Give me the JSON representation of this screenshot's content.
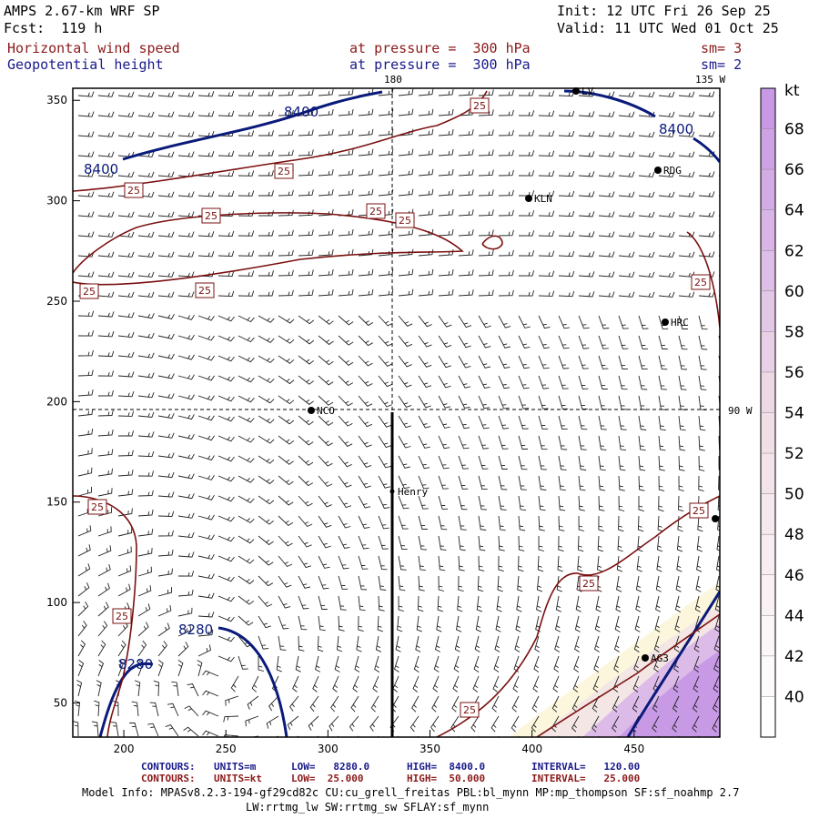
{
  "header": {
    "model": "AMPS 2.67-km WRF SP",
    "init": "Init: 12 UTC Fri 26 Sep 25",
    "forecast": "Fcst:  119 h",
    "valid": "Valid: 11 UTC Wed 01 Oct 25",
    "field1": {
      "name": "Horizontal wind speed",
      "level": "at pressure =  300 hPa",
      "smooth": "sm= 3"
    },
    "field2": {
      "name": "Geopotential height",
      "level": "at pressure =  300 hPa",
      "smooth": "sm= 2"
    }
  },
  "grid_labels": {
    "lon180": "180",
    "lon135w": "135 W",
    "lon90w": "90 W"
  },
  "axes": {
    "x_ticks": [
      "200",
      "250",
      "300",
      "350",
      "400",
      "450"
    ],
    "y_ticks": [
      "50",
      "100",
      "150",
      "200",
      "250",
      "300",
      "350"
    ]
  },
  "colorbar": {
    "unit": "kt",
    "labels": [
      "68",
      "66",
      "64",
      "62",
      "60",
      "58",
      "56",
      "54",
      "52",
      "50",
      "48",
      "46",
      "44",
      "42",
      "40"
    ],
    "colors": {
      "low": "#fbf6dc",
      "mid": "#f0dde6",
      "high": "#c89ae6"
    }
  },
  "stations": [
    {
      "id": "LV",
      "label": "LV"
    },
    {
      "id": "RDG",
      "label": "RDG"
    },
    {
      "id": "KLN",
      "label": "KLN"
    },
    {
      "id": "HRC",
      "label": "HRC"
    },
    {
      "id": "NCO",
      "label": "NCO"
    },
    {
      "id": "Henry",
      "label": "Henry"
    },
    {
      "id": "AG",
      "label": "AG3"
    }
  ],
  "contour_labels": {
    "height_8400": "8400",
    "height_8280": "8280",
    "speed_25": "25"
  },
  "footer": {
    "row1": {
      "title": "CONTOURS:",
      "units": "UNITS=m",
      "low": "LOW=   8280.0",
      "high": "HIGH=  8400.0",
      "interval": "INTERVAL=   120.00"
    },
    "row2": {
      "title": "CONTOURS:",
      "units": "UNITS=kt",
      "low": "LOW=  25.000",
      "high": "HIGH=  50.000",
      "interval": "INTERVAL=   25.000"
    },
    "model_info1": "Model Info: MPASv8.2.3-194-gf29cd82c CU:cu_grell_freitas PBL:bl_mynn MP:mp_thompson SF:sf_noahmp 2.7",
    "model_info2": "LW:rrtmg_lw SW:rrtmg_sw SFLAY:sf_mynn"
  },
  "colors": {
    "height_contour": "#0a1a7a",
    "speed_contour": "#7a1010",
    "barb": "#000000"
  }
}
